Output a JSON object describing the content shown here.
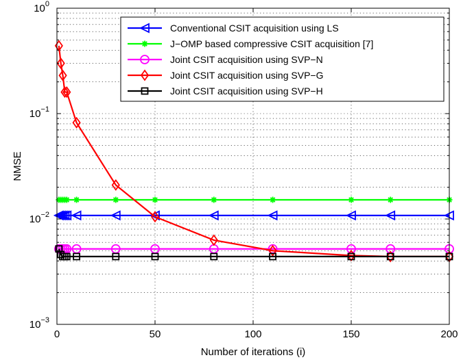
{
  "chart_data": {
    "type": "line",
    "xlabel": "Number of iterations (i)",
    "ylabel": "NMSE",
    "xlim": [
      0,
      200
    ],
    "ylim": [
      0.001,
      1
    ],
    "yscale": "log",
    "grid": true,
    "legend_position": "top-right",
    "x_ticks": [
      "0",
      "50",
      "100",
      "150",
      "200"
    ],
    "y_ticks": [
      {
        "base": "10",
        "exp": "0",
        "value": 1
      },
      {
        "base": "10",
        "exp": "−1",
        "value": 0.1
      },
      {
        "base": "10",
        "exp": "−2",
        "value": 0.01
      },
      {
        "base": "10",
        "exp": "−3",
        "value": 0.001
      }
    ],
    "series": [
      {
        "name": "Conventional CSIT acquisition using LS",
        "color": "#0000ff",
        "marker": "triangle-left",
        "x": [
          1,
          2,
          3,
          4,
          5,
          10,
          30,
          50,
          80,
          110,
          150,
          170,
          200
        ],
        "y": [
          0.0108,
          0.0108,
          0.0108,
          0.0108,
          0.0108,
          0.0108,
          0.0108,
          0.0108,
          0.0108,
          0.0108,
          0.0108,
          0.0108,
          0.0108
        ]
      },
      {
        "name": "J−OMP based compressive CSIT acquisition [7]",
        "color": "#00ff00",
        "marker": "asterisk",
        "x": [
          1,
          2,
          3,
          4,
          5,
          10,
          30,
          50,
          80,
          110,
          150,
          170,
          200
        ],
        "y": [
          0.0152,
          0.0152,
          0.0152,
          0.0152,
          0.0152,
          0.0152,
          0.0152,
          0.0152,
          0.0152,
          0.0152,
          0.0152,
          0.0152,
          0.0152
        ]
      },
      {
        "name": "Joint CSIT acquisition using SVP−N",
        "color": "#ff00ff",
        "marker": "circle",
        "x": [
          1,
          2,
          3,
          4,
          5,
          10,
          30,
          50,
          80,
          110,
          150,
          170,
          200
        ],
        "y": [
          0.0052,
          0.0052,
          0.0052,
          0.0052,
          0.0052,
          0.0052,
          0.0052,
          0.0052,
          0.0052,
          0.0052,
          0.0052,
          0.0052,
          0.0052
        ]
      },
      {
        "name": "Joint CSIT acquisition using SVP−G",
        "color": "#ff0000",
        "marker": "diamond",
        "x": [
          1,
          2,
          3,
          4,
          5,
          10,
          30,
          50,
          80,
          110,
          150,
          170,
          200
        ],
        "y": [
          0.44,
          0.3,
          0.23,
          0.16,
          0.16,
          0.082,
          0.021,
          0.0105,
          0.0063,
          0.005,
          0.0045,
          0.0044,
          0.0044
        ]
      },
      {
        "name": "Joint CSIT acquisition using SVP−H",
        "color": "#000000",
        "marker": "square",
        "x": [
          1,
          2,
          3,
          4,
          5,
          10,
          30,
          50,
          80,
          110,
          150,
          170,
          200
        ],
        "y": [
          0.0052,
          0.0046,
          0.0044,
          0.0044,
          0.0044,
          0.0044,
          0.0044,
          0.0044,
          0.0044,
          0.0044,
          0.0044,
          0.0044,
          0.0044
        ]
      }
    ]
  }
}
